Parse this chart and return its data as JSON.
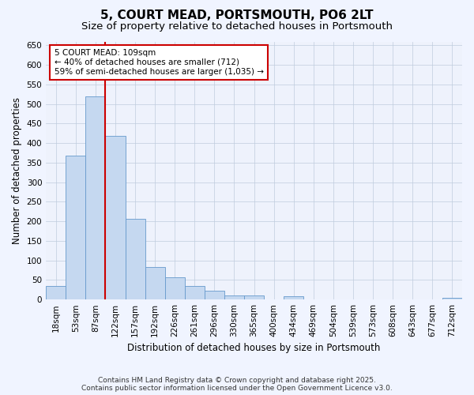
{
  "title": "5, COURT MEAD, PORTSMOUTH, PO6 2LT",
  "subtitle": "Size of property relative to detached houses in Portsmouth",
  "xlabel": "Distribution of detached houses by size in Portsmouth",
  "ylabel": "Number of detached properties",
  "categories": [
    "18sqm",
    "53sqm",
    "87sqm",
    "122sqm",
    "157sqm",
    "192sqm",
    "226sqm",
    "261sqm",
    "296sqm",
    "330sqm",
    "365sqm",
    "400sqm",
    "434sqm",
    "469sqm",
    "504sqm",
    "539sqm",
    "573sqm",
    "608sqm",
    "643sqm",
    "677sqm",
    "712sqm"
  ],
  "values": [
    35,
    368,
    520,
    418,
    207,
    83,
    57,
    35,
    22,
    10,
    10,
    0,
    8,
    0,
    0,
    0,
    0,
    0,
    0,
    0,
    5
  ],
  "bar_color": "#c5d8f0",
  "bar_edge_color": "#6699cc",
  "vline_x": 3.0,
  "vline_color": "#cc0000",
  "annotation_text": "5 COURT MEAD: 109sqm\n← 40% of detached houses are smaller (712)\n59% of semi-detached houses are larger (1,035) →",
  "annotation_box_color": "#ffffff",
  "annotation_box_edge": "#cc0000",
  "ylim": [
    0,
    660
  ],
  "yticks": [
    0,
    50,
    100,
    150,
    200,
    250,
    300,
    350,
    400,
    450,
    500,
    550,
    600,
    650
  ],
  "footer": "Contains HM Land Registry data © Crown copyright and database right 2025.\nContains public sector information licensed under the Open Government Licence v3.0.",
  "bg_color": "#f0f4ff",
  "plot_bg_color": "#eef2fc",
  "title_fontsize": 11,
  "subtitle_fontsize": 9.5,
  "axis_label_fontsize": 8.5,
  "tick_fontsize": 7.5,
  "footer_fontsize": 6.5,
  "annotation_fontsize": 7.5
}
